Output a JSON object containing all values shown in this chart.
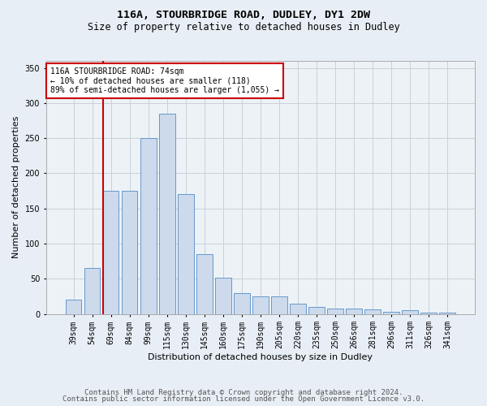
{
  "title_line1": "116A, STOURBRIDGE ROAD, DUDLEY, DY1 2DW",
  "title_line2": "Size of property relative to detached houses in Dudley",
  "xlabel": "Distribution of detached houses by size in Dudley",
  "ylabel": "Number of detached properties",
  "categories": [
    "39sqm",
    "54sqm",
    "69sqm",
    "84sqm",
    "99sqm",
    "115sqm",
    "130sqm",
    "145sqm",
    "160sqm",
    "175sqm",
    "190sqm",
    "205sqm",
    "220sqm",
    "235sqm",
    "250sqm",
    "266sqm",
    "281sqm",
    "296sqm",
    "311sqm",
    "326sqm",
    "341sqm"
  ],
  "values": [
    20,
    65,
    175,
    175,
    250,
    285,
    170,
    85,
    52,
    30,
    25,
    25,
    15,
    10,
    8,
    7,
    6,
    3,
    5,
    2,
    2
  ],
  "bar_color": "#ccdaec",
  "bar_edge_color": "#6699cc",
  "vline_color": "#cc0000",
  "annotation_text": "116A STOURBRIDGE ROAD: 74sqm\n← 10% of detached houses are smaller (118)\n89% of semi-detached houses are larger (1,055) →",
  "annotation_box_color": "#cc0000",
  "ylim": [
    0,
    360
  ],
  "yticks": [
    0,
    50,
    100,
    150,
    200,
    250,
    300,
    350
  ],
  "grid_color": "#c8d0d8",
  "footer_line1": "Contains HM Land Registry data © Crown copyright and database right 2024.",
  "footer_line2": "Contains public sector information licensed under the Open Government Licence v3.0.",
  "bg_color": "#e8eef5",
  "plot_bg_color": "#edf2f7",
  "title_fontsize": 9.5,
  "subtitle_fontsize": 8.5,
  "axis_label_fontsize": 8,
  "tick_fontsize": 7,
  "annotation_fontsize": 7,
  "footer_fontsize": 6.5
}
